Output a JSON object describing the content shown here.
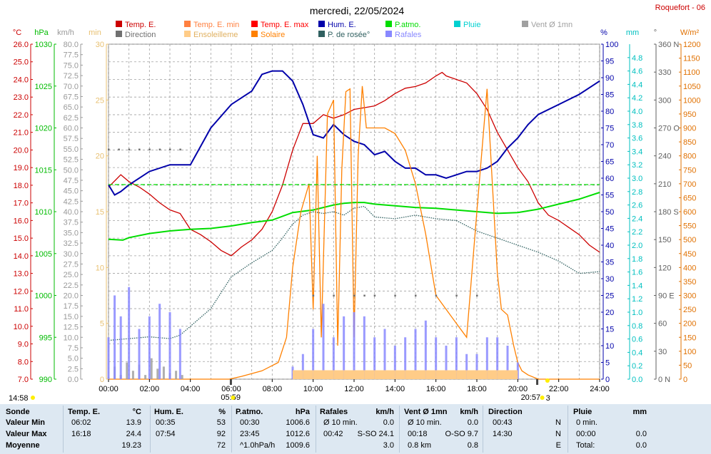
{
  "title": "mercredi, 22/05/2024",
  "station": "Roquefort - 06",
  "colors": {
    "temp": "#cc0000",
    "temp_min": "#ff8040",
    "temp_max": "#ff0000",
    "solaire": "#ff8000",
    "hum": "#0000aa",
    "patmo": "#00dd00",
    "pluie": "#00d0d0",
    "vent": "#a0a0a0",
    "direction": "#707070",
    "ensoleil": "#ffcc88",
    "rosee": "#306060",
    "rafales": "#8888ff",
    "grid": "#a0a0a0",
    "table_bg": "#dde8f2"
  },
  "legend": [
    {
      "label": "Temp. E.",
      "color": "#cc0000",
      "col": 0,
      "row": 0
    },
    {
      "label": "Direction",
      "color": "#707070",
      "col": 0,
      "row": 1
    },
    {
      "label": "Temp. E. min",
      "color": "#ff8040",
      "col": 1,
      "row": 0
    },
    {
      "label": "Ensoleilleme",
      "color": "#ffcc88",
      "col": 1,
      "row": 1
    },
    {
      "label": "Temp. E. max",
      "color": "#ff0000",
      "col": 2,
      "row": 0
    },
    {
      "label": "Solaire",
      "color": "#ff8000",
      "col": 2,
      "row": 1
    },
    {
      "label": "Hum. E.",
      "color": "#0000aa",
      "col": 3,
      "row": 0
    },
    {
      "label": "P. de rosée°",
      "color": "#306060",
      "col": 3,
      "row": 1
    },
    {
      "label": "P.atmo.",
      "color": "#00dd00",
      "col": 4,
      "row": 0
    },
    {
      "label": "Rafales",
      "color": "#8888ff",
      "col": 4,
      "row": 1
    },
    {
      "label": "Pluie",
      "color": "#00d0d0",
      "col": 5,
      "row": 0
    },
    {
      "label": "Vent Ø 1mn",
      "color": "#a0a0a0",
      "col": 6,
      "row": 0
    }
  ],
  "axes": {
    "temp": {
      "unit": "°C",
      "color": "#cc0000",
      "ticks": [
        "26.0",
        "25.0",
        "24.0",
        "23.0",
        "22.0",
        "21.0",
        "20.0",
        "19.0",
        "18.0",
        "17.0",
        "16.0",
        "15.0",
        "14.0",
        "13.0",
        "12.0",
        "11.0",
        "10.0",
        "9.0",
        "8.0",
        "7.0"
      ]
    },
    "patmo": {
      "unit": "hPa",
      "color": "#00bb00",
      "ticks": [
        "1030",
        "1025",
        "1020",
        "1015",
        "1010",
        "1005",
        "1000",
        "995",
        "990"
      ]
    },
    "vent": {
      "unit": "km/h",
      "color": "#999999",
      "ticks": [
        "80.0",
        "77.5",
        "75.0",
        "72.5",
        "70.0",
        "67.5",
        "65.0",
        "62.5",
        "60.0",
        "57.5",
        "55.0",
        "52.5",
        "50.0",
        "47.5",
        "45.0",
        "42.5",
        "40.0",
        "37.5",
        "35.0",
        "32.5",
        "30.0",
        "27.5",
        "25.0",
        "22.5",
        "20.0",
        "17.5",
        "15.0",
        "12.5",
        "10.0",
        "7.5",
        "5.0",
        "2.5",
        "0.0"
      ]
    },
    "min": {
      "unit": "min",
      "color": "#e8c070",
      "ticks": [
        "30",
        "25",
        "20",
        "15",
        "10",
        "5",
        "0"
      ]
    },
    "hum": {
      "unit": "%",
      "color": "#0000aa",
      "ticks": [
        "100",
        "95",
        "90",
        "85",
        "80",
        "75",
        "70",
        "65",
        "60",
        "55",
        "50",
        "45",
        "40",
        "35",
        "30",
        "25",
        "20",
        "15",
        "10",
        "5",
        "0"
      ]
    },
    "pluie": {
      "unit": "mm",
      "color": "#00c0c0",
      "ticks": [
        "4.8",
        "4.6",
        "4.4",
        "4.2",
        "4.0",
        "3.8",
        "3.6",
        "3.4",
        "3.2",
        "3.0",
        "2.8",
        "2.6",
        "2.4",
        "2.2",
        "2.0",
        "1.8",
        "1.6",
        "1.4",
        "1.2",
        "1.0",
        "0.8",
        "0.6",
        "0.4",
        "0.2",
        "0.0"
      ]
    },
    "dir": {
      "unit": "°",
      "color": "#606060",
      "ticks": [
        "360 N",
        "330",
        "300",
        "270 O",
        "240",
        "210",
        "180 S",
        "150",
        "120",
        "90 E",
        "60",
        "30",
        "0 N"
      ]
    },
    "solar": {
      "unit": "W/m²",
      "color": "#e07000",
      "ticks": [
        "1200",
        "1150",
        "1100",
        "1050",
        "1000",
        "950",
        "900",
        "850",
        "800",
        "750",
        "700",
        "650",
        "600",
        "550",
        "500",
        "450",
        "400",
        "350",
        "300",
        "250",
        "200",
        "150",
        "100",
        "50",
        "0"
      ]
    }
  },
  "x_ticks": [
    "00:00",
    "02:00",
    "04:00",
    "06:00",
    "08:00",
    "10:00",
    "12:00",
    "14:00",
    "16:00",
    "18:00",
    "20:00",
    "22:00",
    "24:00"
  ],
  "sun": {
    "sunrise_label": "05:59",
    "sunset_label": "20:57",
    "left_label": "14:58",
    "right_label": "3"
  },
  "chart_data": {
    "type": "line",
    "x_unit": "hour",
    "xlim": [
      0,
      24
    ],
    "series": [
      {
        "name": "Temp. E.",
        "axis": "°C",
        "ylim": [
          7,
          26
        ],
        "x": [
          0,
          0.35,
          0.6,
          1.0,
          1.5,
          2.0,
          2.5,
          3.0,
          3.5,
          4.0,
          4.5,
          5.0,
          5.5,
          6.0,
          6.5,
          7.0,
          7.5,
          8.0,
          8.5,
          9.0,
          9.5,
          10.0,
          10.5,
          11.0,
          11.5,
          12.0,
          12.5,
          13.0,
          13.5,
          14.0,
          14.5,
          15.0,
          15.5,
          16.0,
          16.3,
          16.5,
          17.0,
          17.5,
          18.0,
          18.5,
          19.0,
          19.5,
          20.0,
          20.5,
          21.0,
          21.5,
          22.0,
          22.5,
          23.0,
          23.5,
          24.0
        ],
        "values": [
          17.9,
          18.3,
          18.6,
          18.2,
          17.9,
          17.5,
          17.0,
          16.6,
          16.4,
          15.5,
          15.2,
          14.8,
          14.3,
          14.0,
          14.5,
          14.9,
          15.5,
          16.5,
          18.0,
          20.0,
          21.5,
          21.5,
          22.0,
          21.8,
          22.0,
          22.3,
          22.4,
          22.5,
          22.8,
          23.2,
          23.5,
          23.6,
          23.8,
          24.2,
          24.4,
          24.2,
          24.0,
          23.8,
          23.2,
          22.3,
          21.0,
          20.0,
          19.0,
          18.2,
          17.0,
          16.3,
          16.0,
          15.6,
          15.2,
          14.6,
          14.2
        ]
      },
      {
        "name": "Hum. E.",
        "axis": "%",
        "ylim": [
          0,
          100
        ],
        "x": [
          0,
          0.3,
          0.6,
          1.0,
          2.0,
          3.0,
          3.5,
          4.0,
          5.0,
          6.0,
          7.0,
          7.5,
          8.0,
          8.5,
          9.0,
          9.5,
          10.0,
          10.5,
          11.0,
          11.5,
          12.0,
          12.5,
          13.0,
          13.5,
          14.0,
          14.5,
          15.0,
          15.5,
          16.0,
          16.5,
          17.0,
          17.5,
          18.0,
          18.5,
          19.0,
          19.5,
          20.0,
          20.5,
          21.0,
          22.0,
          23.0,
          23.5,
          24.0
        ],
        "values": [
          58,
          55,
          56,
          58,
          62,
          64,
          64,
          64,
          75,
          82,
          86,
          91,
          92,
          92,
          89,
          82,
          73,
          72,
          76,
          73,
          71,
          70,
          67,
          68,
          65,
          63,
          63,
          61,
          61,
          60,
          61,
          62,
          62,
          63,
          65,
          69,
          72,
          76,
          79,
          82,
          85,
          87,
          89
        ]
      },
      {
        "name": "P.atmo.",
        "axis": "hPa",
        "ylim": [
          990,
          1030
        ],
        "x": [
          0,
          0.7,
          1.0,
          2.0,
          3.0,
          4.0,
          5.0,
          6.0,
          7.0,
          8.0,
          9.0,
          10.0,
          11.0,
          11.5,
          12.0,
          12.5,
          13.0,
          14.0,
          15.0,
          16.0,
          17.0,
          18.0,
          19.0,
          20.0,
          21.0,
          22.0,
          23.0,
          23.5,
          24.0
        ],
        "values": [
          1006.7,
          1006.6,
          1006.9,
          1007.4,
          1007.7,
          1007.9,
          1008.0,
          1008.3,
          1008.7,
          1009.0,
          1009.9,
          1010.2,
          1010.8,
          1011.0,
          1011.1,
          1011.1,
          1010.9,
          1010.7,
          1010.5,
          1010.4,
          1010.2,
          1010.0,
          1009.8,
          1009.9,
          1010.3,
          1010.9,
          1011.5,
          1011.9,
          1012.3
        ]
      },
      {
        "name": "P. de rosée°",
        "axis": "°C",
        "ylim": [
          7,
          26
        ],
        "x": [
          0,
          1.0,
          2.0,
          3.0,
          3.5,
          4.0,
          5.0,
          6.0,
          7.0,
          8.0,
          8.5,
          9.0,
          9.5,
          10.0,
          10.5,
          11.0,
          11.5,
          12.0,
          12.5,
          13.0,
          14.0,
          15.0,
          16.0,
          17.0,
          18.0,
          19.0,
          20.0,
          21.0,
          22.0,
          23.0,
          24.0
        ],
        "values": [
          9.2,
          9.3,
          9.4,
          9.3,
          9.5,
          10.0,
          11.0,
          12.8,
          13.6,
          14.3,
          15.0,
          15.8,
          16.3,
          16.5,
          16.4,
          16.5,
          16.3,
          16.7,
          16.8,
          16.2,
          16.1,
          16.3,
          16.1,
          16.0,
          15.4,
          15.0,
          14.6,
          14.2,
          13.7,
          13.0,
          13.1
        ]
      },
      {
        "name": "Solaire",
        "axis": "W/m²",
        "ylim": [
          0,
          1200
        ],
        "x": [
          0,
          5.9,
          6.5,
          7.5,
          8.3,
          8.7,
          9.0,
          9.4,
          9.8,
          10.0,
          10.2,
          10.4,
          10.7,
          11.0,
          11.2,
          11.4,
          11.6,
          11.8,
          12.0,
          12.2,
          12.4,
          12.6,
          13.0,
          13.5,
          14.0,
          14.5,
          15.0,
          15.5,
          16.0,
          16.5,
          17.0,
          17.5,
          18.0,
          18.5,
          19.0,
          19.2,
          19.5,
          19.8,
          20.0,
          20.2,
          20.5,
          21.0,
          24.0
        ],
        "values": [
          0,
          0,
          10,
          30,
          60,
          150,
          400,
          600,
          700,
          250,
          800,
          150,
          950,
          1000,
          120,
          750,
          1030,
          1040,
          150,
          800,
          1050,
          900,
          900,
          900,
          880,
          820,
          700,
          520,
          300,
          250,
          200,
          150,
          600,
          1040,
          380,
          250,
          230,
          120,
          60,
          30,
          15,
          0,
          0
        ]
      },
      {
        "name": "Vent Ø 1mn",
        "axis": "km/h",
        "ylim": [
          0,
          80
        ],
        "x": [
          0,
          0.3,
          0.6,
          0.9,
          1.2,
          1.5,
          1.8,
          2.1,
          2.4,
          2.7,
          3.0,
          3.3,
          3.6,
          4.0,
          24.0
        ],
        "values": [
          0.5,
          3.0,
          1.0,
          4.0,
          2.0,
          3.5,
          1.0,
          5.0,
          2.5,
          3.0,
          1.5,
          2.0,
          1.0,
          0,
          0
        ]
      },
      {
        "name": "Rafales",
        "axis": "km/h",
        "ylim": [
          0,
          80
        ],
        "x": [
          0,
          0.3,
          0.6,
          1.0,
          1.5,
          2.0,
          2.5,
          3.0,
          3.5,
          4.0,
          9.0,
          9.5,
          10.0,
          10.5,
          11.0,
          11.5,
          12.0,
          12.5,
          13.0,
          13.5,
          14.0,
          14.5,
          15.0,
          15.5,
          16.0,
          16.5,
          17.0,
          17.5,
          18.0,
          18.5,
          19.0,
          19.5,
          20.0,
          24.0
        ],
        "values": [
          10,
          20,
          15,
          22,
          12,
          15,
          18,
          16,
          12,
          0,
          3,
          6,
          12,
          18,
          10,
          15,
          16,
          15,
          10,
          12,
          8,
          10,
          12,
          14,
          10,
          8,
          10,
          6,
          6,
          10,
          10,
          8,
          4,
          0
        ]
      },
      {
        "name": "Direction",
        "axis": "°",
        "ylim": [
          0,
          360
        ],
        "x": [
          0,
          0.5,
          1.0,
          1.5,
          2.0,
          2.5,
          3.0,
          3.5,
          10.0,
          11.0,
          12.0,
          12.5,
          13.0,
          14.0,
          15.0,
          16.0,
          17.0,
          18.0
        ],
        "values": [
          247,
          247,
          247,
          247,
          247,
          247,
          247,
          247,
          90,
          90,
          90,
          90,
          90,
          90,
          90,
          90,
          90,
          90
        ]
      },
      {
        "name": "Ensoleilleme",
        "axis": "min",
        "ylim": [
          0,
          30
        ],
        "x": [
          8.8,
          9.0,
          9.5,
          10.0,
          10.5,
          11.0,
          11.5,
          12.0,
          12.5,
          13.0,
          13.5,
          14.0,
          14.5,
          15.0,
          15.5,
          16.0,
          16.5,
          17.0,
          17.5,
          18.0,
          18.5,
          19.0,
          19.5,
          20.0
        ],
        "values": [
          0,
          0.8,
          0.8,
          0.8,
          0.8,
          0.8,
          0.8,
          0.8,
          0.8,
          0.8,
          0.8,
          0.8,
          0.8,
          0.8,
          0.8,
          0.8,
          0.8,
          0.8,
          0.8,
          0.8,
          0.8,
          0.8,
          0.8,
          0.0
        ]
      }
    ]
  },
  "table": {
    "columns": [
      {
        "title": "Sonde",
        "unit": ""
      },
      {
        "title": "Temp. E.",
        "unit": "°C"
      },
      {
        "title": "Hum. E.",
        "unit": "%"
      },
      {
        "title": "P.atmo.",
        "unit": "hPa"
      },
      {
        "title": "Rafales",
        "unit": "km/h"
      },
      {
        "title": "Vent Ø 1mn",
        "unit": "km/h"
      },
      {
        "title": "Direction",
        "unit": ""
      },
      {
        "title": "Pluie",
        "unit": "mm"
      }
    ],
    "rows": [
      {
        "label": "Valeur Min",
        "temp": [
          "06:02",
          "13.9"
        ],
        "hum": [
          "00:35",
          "53"
        ],
        "patmo": [
          "00:30",
          "1006.6"
        ],
        "raf": [
          "Ø 10 min.",
          "0.0"
        ],
        "vent": [
          "Ø 10 min.",
          "0.0"
        ],
        "dir": [
          "00:43",
          "N"
        ],
        "pluie": [
          "0 min.",
          ""
        ]
      },
      {
        "label": "Valeur Max",
        "temp": [
          "16:18",
          "24.4"
        ],
        "hum": [
          "07:54",
          "92"
        ],
        "patmo": [
          "23:45",
          "1012.6"
        ],
        "raf": [
          "00:42",
          "S-SO 24.1"
        ],
        "vent": [
          "00:18",
          "O-SO 9.7"
        ],
        "dir": [
          "14:30",
          "N"
        ],
        "pluie": [
          "00:00",
          "0.0"
        ]
      },
      {
        "label": "Moyenne",
        "temp": [
          "",
          "19.23"
        ],
        "hum": [
          "",
          "72"
        ],
        "patmo": [
          "^1.0hPa/h",
          "1009.6"
        ],
        "raf": [
          "",
          "3.0"
        ],
        "vent": [
          "0.8 km",
          "0.8"
        ],
        "dir": [
          "",
          "E"
        ],
        "pluie": [
          "Total:",
          "0.0"
        ]
      }
    ]
  }
}
